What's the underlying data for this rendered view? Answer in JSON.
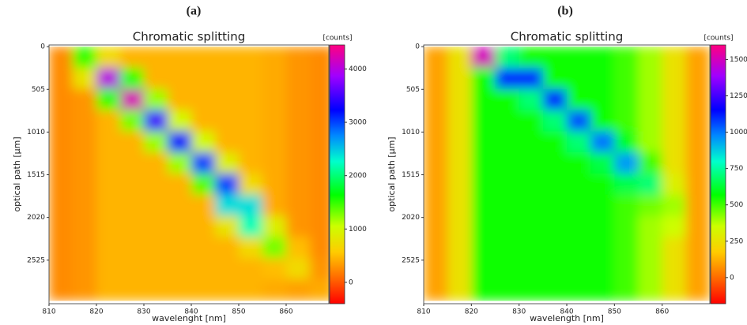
{
  "chart_data": [
    {
      "type": "heatmap",
      "panel_label": "(a)",
      "title": "Chromatic splitting",
      "xlabel": "wavelenght [nm]",
      "ylabel": "optical path [µm]",
      "colorbar_label": "[counts]",
      "xlim": [
        810,
        869
      ],
      "xticks": [
        810,
        820,
        830,
        840,
        850,
        860
      ],
      "ylim": [
        -20,
        3040
      ],
      "yticks": [
        0,
        505,
        1010,
        1515,
        2020,
        2525
      ],
      "y_inverted": true,
      "clim": [
        -400,
        4450
      ],
      "cticks": [
        0,
        1000,
        2000,
        3000,
        4000
      ],
      "colormap": "gist_rainbow",
      "xbins": [
        810,
        815,
        820,
        825,
        830,
        835,
        840,
        845,
        850,
        855,
        860,
        865,
        870
      ],
      "ybins": [
        0,
        250,
        500,
        750,
        1000,
        1250,
        1500,
        1750,
        2000,
        2250,
        2500,
        2750,
        3000
      ],
      "z": [
        [
          250,
          1500,
          700,
          450,
          450,
          450,
          450,
          450,
          450,
          400,
          300,
          250
        ],
        [
          250,
          800,
          4000,
          1500,
          450,
          450,
          450,
          450,
          450,
          400,
          300,
          250
        ],
        [
          250,
          300,
          1500,
          4200,
          1200,
          450,
          450,
          450,
          450,
          400,
          300,
          250
        ],
        [
          250,
          300,
          450,
          1300,
          3500,
          1000,
          450,
          450,
          450,
          400,
          300,
          250
        ],
        [
          250,
          300,
          450,
          450,
          1200,
          3200,
          1000,
          450,
          450,
          400,
          300,
          250
        ],
        [
          250,
          300,
          450,
          450,
          450,
          1200,
          3000,
          900,
          450,
          400,
          300,
          250
        ],
        [
          250,
          300,
          450,
          450,
          450,
          450,
          1400,
          3000,
          700,
          400,
          300,
          250
        ],
        [
          250,
          300,
          450,
          450,
          450,
          450,
          450,
          2400,
          2400,
          400,
          300,
          250
        ],
        [
          250,
          300,
          450,
          450,
          450,
          450,
          450,
          800,
          2200,
          900,
          300,
          250
        ],
        [
          250,
          300,
          450,
          450,
          450,
          450,
          450,
          450,
          700,
          1300,
          500,
          250
        ],
        [
          250,
          300,
          450,
          450,
          450,
          450,
          450,
          450,
          450,
          500,
          700,
          300
        ],
        [
          250,
          300,
          450,
          450,
          450,
          450,
          450,
          450,
          450,
          400,
          350,
          400
        ]
      ]
    },
    {
      "type": "heatmap",
      "panel_label": "(b)",
      "title": "Chromatic splitting",
      "xlabel": "wavelength [nm]",
      "ylabel": "optical path [µm]",
      "colorbar_label": "[counts]",
      "xlim": [
        810,
        870
      ],
      "xticks": [
        810,
        820,
        830,
        840,
        850,
        860
      ],
      "ylim": [
        -20,
        3040
      ],
      "yticks": [
        0,
        505,
        1010,
        1515,
        2020,
        2525
      ],
      "y_inverted": true,
      "clim": [
        -180,
        1600
      ],
      "cticks": [
        0,
        250,
        500,
        750,
        1000,
        1250,
        1500
      ],
      "colormap": "gist_rainbow",
      "xbins": [
        810,
        815,
        820,
        825,
        830,
        835,
        840,
        845,
        850,
        855,
        860,
        865,
        870
      ],
      "ybins": [
        0,
        250,
        500,
        750,
        1000,
        1250,
        1500,
        1750,
        2000,
        2250,
        2500,
        2750,
        3000
      ],
      "z": [
        [
          100,
          250,
          1500,
          700,
          550,
          550,
          550,
          550,
          500,
          400,
          250,
          100
        ],
        [
          100,
          250,
          550,
          1100,
          1100,
          550,
          550,
          550,
          500,
          400,
          250,
          100
        ],
        [
          100,
          250,
          550,
          550,
          700,
          1100,
          550,
          550,
          500,
          400,
          250,
          100
        ],
        [
          100,
          250,
          550,
          550,
          550,
          700,
          1050,
          550,
          500,
          400,
          250,
          100
        ],
        [
          100,
          250,
          550,
          550,
          550,
          550,
          700,
          1000,
          600,
          400,
          250,
          100
        ],
        [
          100,
          250,
          550,
          550,
          550,
          550,
          550,
          650,
          950,
          500,
          250,
          100
        ],
        [
          100,
          250,
          550,
          550,
          550,
          550,
          550,
          550,
          650,
          700,
          300,
          100
        ],
        [
          100,
          250,
          550,
          550,
          550,
          550,
          550,
          550,
          500,
          450,
          400,
          100
        ],
        [
          100,
          250,
          550,
          550,
          550,
          550,
          550,
          550,
          500,
          400,
          350,
          100
        ],
        [
          100,
          250,
          550,
          550,
          550,
          550,
          550,
          550,
          500,
          400,
          250,
          100
        ],
        [
          100,
          250,
          550,
          550,
          550,
          550,
          550,
          550,
          500,
          400,
          250,
          100
        ],
        [
          100,
          250,
          550,
          550,
          550,
          550,
          550,
          550,
          500,
          400,
          250,
          100
        ]
      ]
    }
  ]
}
